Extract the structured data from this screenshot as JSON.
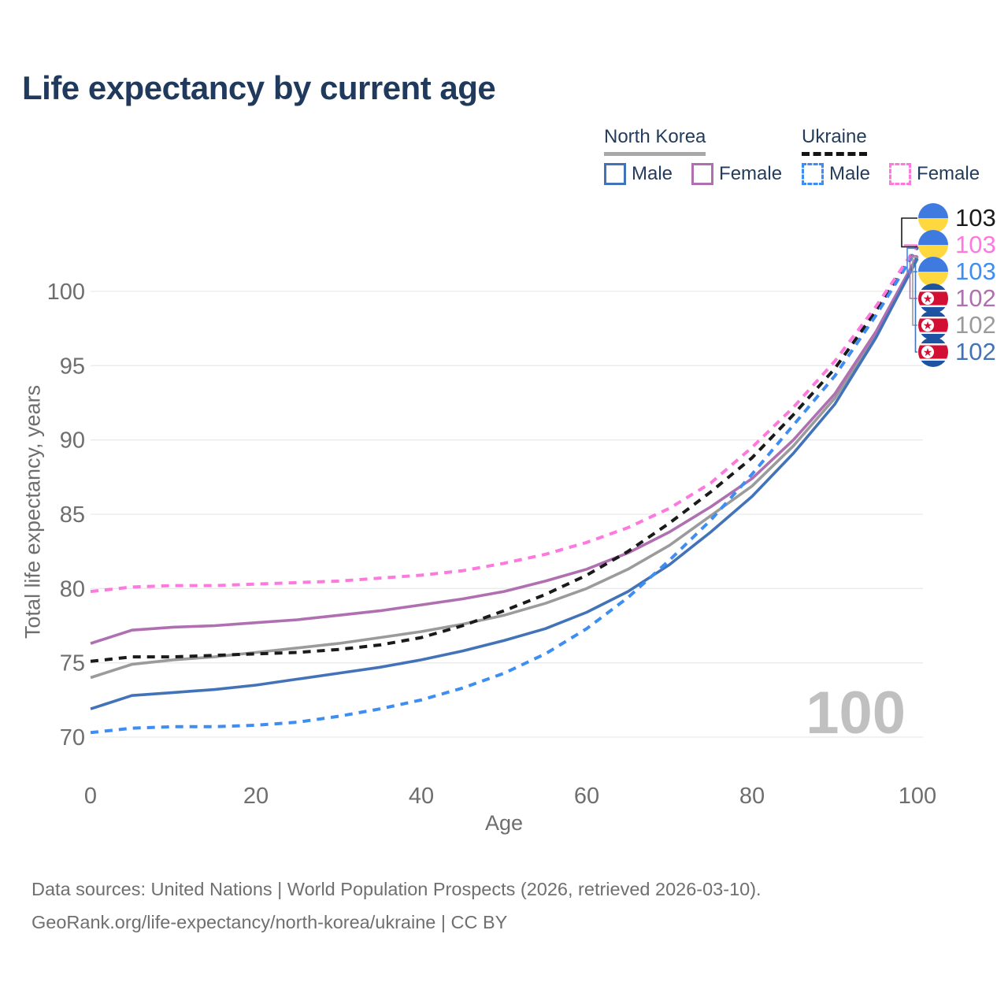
{
  "page": {
    "title": "Life expectancy by current age"
  },
  "colors": {
    "title": "#1F3A5C",
    "legend_text": "#243C5C",
    "axis_text": "#6E6E6E",
    "grid": "#EAEAEA",
    "watermark": "#C0C0C0",
    "footer_text": "#6F6F6F",
    "nk_underline": "#A8A8A8",
    "ua_underline": "#141414",
    "series": {
      "nk_male": "#4273B9",
      "nk_female": "#B06FB0",
      "nk_total": "#9B9B9B",
      "ua_male": "#3E8DF3",
      "ua_female": "#FF78DE",
      "ua_total": "#1A1A1A"
    },
    "flags": {
      "ua_blue": "#3F7AE0",
      "ua_yellow": "#FFD840",
      "nk_blue": "#1D53A0",
      "nk_red": "#D21034"
    }
  },
  "legend": {
    "groups": [
      {
        "label": "North Korea",
        "line_style": "solid",
        "items": [
          {
            "label": "Male",
            "series": "nk_male"
          },
          {
            "label": "Female",
            "series": "nk_female"
          }
        ]
      },
      {
        "label": "Ukraine",
        "line_style": "dashed",
        "items": [
          {
            "label": "Male",
            "series": "ua_male"
          },
          {
            "label": "Female",
            "series": "ua_female"
          }
        ]
      }
    ]
  },
  "right_labels": [
    {
      "flag": "ukraine",
      "value": "103",
      "series": "ua_total"
    },
    {
      "flag": "ukraine",
      "value": "103",
      "series": "ua_female"
    },
    {
      "flag": "ukraine",
      "value": "103",
      "series": "ua_male"
    },
    {
      "flag": "north-korea",
      "value": "102",
      "series": "nk_female"
    },
    {
      "flag": "north-korea",
      "value": "102",
      "series": "nk_total"
    },
    {
      "flag": "north-korea",
      "value": "102",
      "series": "nk_male"
    }
  ],
  "watermark": "100",
  "chart_data": {
    "type": "line",
    "title": "Life expectancy by current age",
    "xlabel": "Age",
    "ylabel": "Total life expectancy, years",
    "x_ticks": [
      0,
      20,
      40,
      60,
      80,
      100
    ],
    "y_ticks": [
      70,
      75,
      80,
      85,
      90,
      95,
      100
    ],
    "xlim": [
      0,
      100
    ],
    "ylim": [
      70,
      100
    ],
    "grid": "horizontal",
    "legend_position": "top-right",
    "x": [
      0,
      5,
      10,
      15,
      20,
      25,
      30,
      35,
      40,
      45,
      50,
      55,
      60,
      65,
      70,
      75,
      80,
      85,
      90,
      95,
      100
    ],
    "series": [
      {
        "id": "nk_total",
        "name": "North Korea Total",
        "country": "North Korea",
        "sex": "Both",
        "line": "solid",
        "values": [
          74.0,
          74.9,
          75.2,
          75.4,
          75.7,
          76.0,
          76.3,
          76.7,
          77.1,
          77.6,
          78.2,
          79.0,
          80.0,
          81.3,
          82.9,
          84.9,
          86.9,
          89.6,
          92.8,
          97.1,
          102.3
        ],
        "end_label": "102"
      },
      {
        "id": "nk_female",
        "name": "North Korea Female",
        "country": "North Korea",
        "sex": "Female",
        "line": "solid",
        "values": [
          76.3,
          77.2,
          77.4,
          77.5,
          77.7,
          77.9,
          78.2,
          78.5,
          78.9,
          79.3,
          79.8,
          80.5,
          81.3,
          82.4,
          83.8,
          85.5,
          87.4,
          90.0,
          93.1,
          97.3,
          102.4
        ],
        "end_label": "102"
      },
      {
        "id": "nk_male",
        "name": "North Korea Male",
        "country": "North Korea",
        "sex": "Male",
        "line": "solid",
        "values": [
          71.9,
          72.8,
          73.0,
          73.2,
          73.5,
          73.9,
          74.3,
          74.7,
          75.2,
          75.8,
          76.5,
          77.3,
          78.4,
          79.8,
          81.6,
          83.8,
          86.2,
          89.1,
          92.4,
          96.9,
          102.2
        ],
        "end_label": "102"
      },
      {
        "id": "ua_total",
        "name": "Ukraine Total",
        "country": "Ukraine",
        "sex": "Both",
        "line": "dashed",
        "values": [
          75.1,
          75.4,
          75.4,
          75.5,
          75.6,
          75.7,
          75.9,
          76.2,
          76.7,
          77.5,
          78.5,
          79.6,
          80.9,
          82.5,
          84.4,
          86.5,
          88.8,
          91.7,
          94.8,
          98.7,
          103.0
        ],
        "end_label": "103"
      },
      {
        "id": "ua_male",
        "name": "Ukraine Male",
        "country": "Ukraine",
        "sex": "Male",
        "line": "dashed",
        "values": [
          70.3,
          70.6,
          70.7,
          70.7,
          70.8,
          71.0,
          71.4,
          71.9,
          72.5,
          73.3,
          74.3,
          75.6,
          77.3,
          79.4,
          81.9,
          84.6,
          87.7,
          91.0,
          94.3,
          98.4,
          102.9
        ],
        "end_label": "103"
      },
      {
        "id": "ua_female",
        "name": "Ukraine Female",
        "country": "Ukraine",
        "sex": "Female",
        "line": "dashed",
        "values": [
          79.8,
          80.1,
          80.2,
          80.2,
          80.3,
          80.4,
          80.5,
          80.7,
          80.9,
          81.2,
          81.7,
          82.3,
          83.1,
          84.1,
          85.4,
          87.1,
          89.5,
          92.2,
          95.3,
          99.0,
          103.1
        ],
        "end_label": "103"
      }
    ]
  },
  "footer": {
    "line1": "Data sources: United Nations | World Population Prospects (2026, retrieved 2026-03-10).",
    "line2": "GeoRank.org/life-expectancy/north-korea/ukraine | CC BY"
  },
  "icons": {
    "nk_star_glyph": "★",
    "ukraine_flag_icon": "circle-blue-over-yellow",
    "north_korea_flag_icon": "circle-red-band-white-disc-red-star"
  }
}
